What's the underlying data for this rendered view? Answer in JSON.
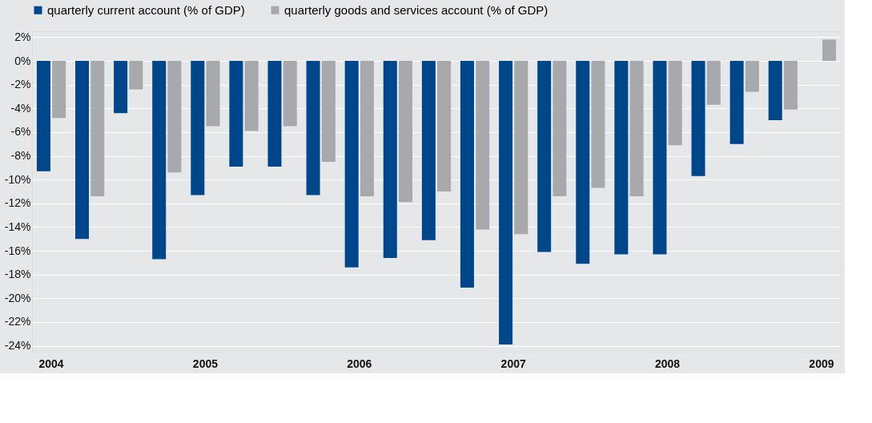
{
  "chart_data": {
    "type": "bar",
    "categories": [
      "2004",
      null,
      null,
      null,
      "2005",
      null,
      null,
      null,
      "2006",
      null,
      null,
      null,
      "2007",
      null,
      null,
      null,
      "2008",
      null,
      null,
      null,
      "2009"
    ],
    "series": [
      {
        "name": "quarterly current account (% of GDP)",
        "color": "#00468b",
        "values": [
          -9.3,
          -15.0,
          -4.4,
          -16.7,
          -11.3,
          -8.9,
          -8.9,
          -11.3,
          -17.4,
          -16.6,
          -15.1,
          -19.1,
          -23.9,
          -16.1,
          -17.1,
          -16.3,
          -16.3,
          -9.7,
          -7.0,
          -5.0,
          null
        ]
      },
      {
        "name": "quarterly goods and services account (% of GDP)",
        "color": "#a7a9ac",
        "values": [
          -4.8,
          -11.4,
          -2.4,
          -9.4,
          -5.5,
          -5.9,
          -5.5,
          -8.5,
          -11.4,
          -11.9,
          -11.0,
          -14.2,
          -14.6,
          -11.4,
          -10.7,
          -11.4,
          -7.1,
          -3.7,
          -2.6,
          -4.1,
          1.8
        ]
      }
    ],
    "ylim": [
      -24.5,
      2.5
    ],
    "yticks": [
      {
        "value": 2,
        "label": "2%"
      },
      {
        "value": 0,
        "label": "0%"
      },
      {
        "value": -2,
        "label": "-2%"
      },
      {
        "value": -4,
        "label": "-4%"
      },
      {
        "value": -6,
        "label": "-6%"
      },
      {
        "value": -8,
        "label": "-8%"
      },
      {
        "value": -10,
        "label": "-10%"
      },
      {
        "value": -12,
        "label": "-12%"
      },
      {
        "value": -14,
        "label": "-14%"
      },
      {
        "value": -16,
        "label": "-16%"
      },
      {
        "value": -18,
        "label": "-18%"
      },
      {
        "value": -20,
        "label": "-20%"
      },
      {
        "value": -22,
        "label": "-22%"
      },
      {
        "value": -24,
        "label": "-24%"
      }
    ],
    "grid": "y",
    "legend": "top"
  }
}
